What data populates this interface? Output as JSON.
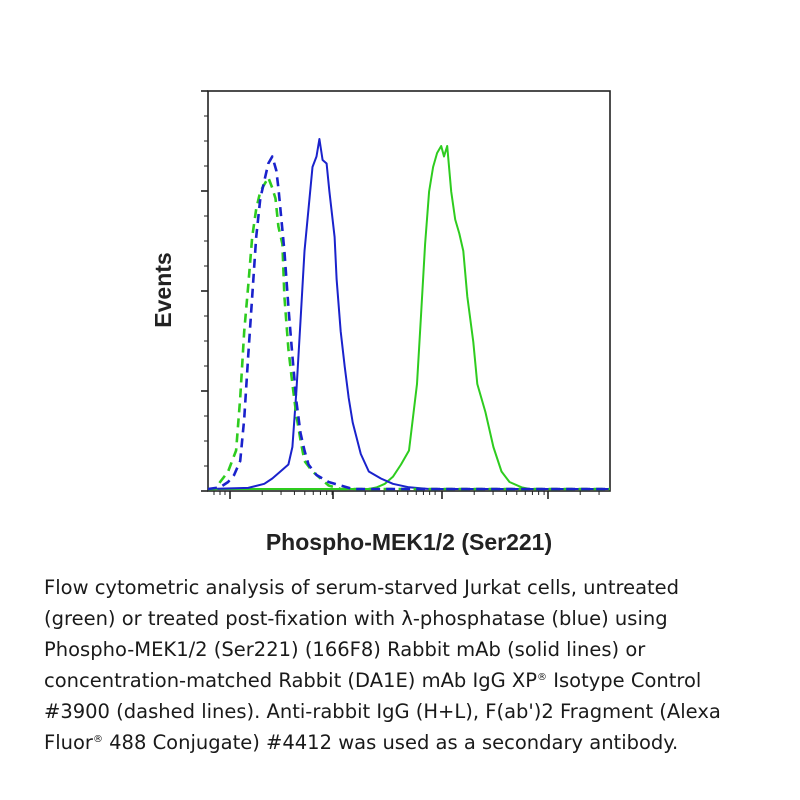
{
  "chart_data": {
    "type": "line",
    "xlabel": "Phospho-MEK1/2 (Ser221)",
    "ylabel": "Events",
    "xlim": [
      0,
      100
    ],
    "ylim": [
      0,
      100
    ],
    "x_scale": "log",
    "grid": false,
    "legend": "none",
    "series": [
      {
        "color": "#2ecc1f",
        "style": "solid",
        "points": [
          [
            0,
            0
          ],
          [
            40,
            0
          ],
          [
            42,
            0.5
          ],
          [
            44,
            1.5
          ],
          [
            46,
            3.5
          ],
          [
            48,
            7
          ],
          [
            50,
            11
          ],
          [
            52,
            30
          ],
          [
            53,
            50
          ],
          [
            54,
            70
          ],
          [
            55,
            85
          ],
          [
            56,
            92
          ],
          [
            57,
            96
          ],
          [
            58,
            98
          ],
          [
            58.7,
            95
          ],
          [
            59.5,
            98
          ],
          [
            60.5,
            85
          ],
          [
            61.5,
            77
          ],
          [
            62.5,
            73
          ],
          [
            63.5,
            68
          ],
          [
            64.5,
            55
          ],
          [
            66,
            42
          ],
          [
            67,
            30
          ],
          [
            69,
            22
          ],
          [
            71,
            12
          ],
          [
            73,
            5
          ],
          [
            75,
            2
          ],
          [
            78,
            0.5
          ],
          [
            80,
            0
          ],
          [
            100,
            0
          ]
        ]
      },
      {
        "color": "#1a22cc",
        "style": "solid",
        "points": [
          [
            0,
            0
          ],
          [
            10,
            0.3
          ],
          [
            14,
            1.5
          ],
          [
            16,
            3
          ],
          [
            18,
            5
          ],
          [
            20,
            7
          ],
          [
            21,
            12
          ],
          [
            22,
            28
          ],
          [
            23,
            48
          ],
          [
            24,
            68
          ],
          [
            25,
            80
          ],
          [
            26,
            92
          ],
          [
            27,
            95
          ],
          [
            27.7,
            100
          ],
          [
            28.5,
            94
          ],
          [
            29.5,
            93
          ],
          [
            30.2,
            85
          ],
          [
            31.5,
            72
          ],
          [
            32,
            60
          ],
          [
            33,
            45
          ],
          [
            34,
            35
          ],
          [
            35,
            26
          ],
          [
            36,
            19
          ],
          [
            38,
            10
          ],
          [
            40,
            5
          ],
          [
            43,
            3
          ],
          [
            46,
            1.5
          ],
          [
            50,
            0.5
          ],
          [
            55,
            0
          ],
          [
            100,
            0
          ]
        ]
      },
      {
        "color": "#2ecc1f",
        "style": "dashed",
        "points": [
          [
            0,
            0
          ],
          [
            2,
            0
          ],
          [
            3,
            2
          ],
          [
            5,
            5
          ],
          [
            7,
            11
          ],
          [
            8,
            26
          ],
          [
            9,
            45
          ],
          [
            10,
            58
          ],
          [
            11,
            72
          ],
          [
            12,
            80
          ],
          [
            13,
            85
          ],
          [
            14,
            87
          ],
          [
            15,
            89
          ],
          [
            16,
            86
          ],
          [
            16.8,
            83
          ],
          [
            17.5,
            75
          ],
          [
            18.5,
            70
          ],
          [
            19,
            55
          ],
          [
            20,
            40
          ],
          [
            21,
            30
          ],
          [
            22,
            21
          ],
          [
            23,
            14
          ],
          [
            24,
            8
          ],
          [
            26,
            5
          ],
          [
            28,
            3
          ],
          [
            30,
            1
          ],
          [
            33,
            0
          ],
          [
            100,
            0
          ]
        ]
      },
      {
        "color": "#1a22cc",
        "style": "dashed",
        "points": [
          [
            0,
            0
          ],
          [
            3,
            0.5
          ],
          [
            5,
            2
          ],
          [
            6.5,
            4
          ],
          [
            8,
            8
          ],
          [
            9,
            20
          ],
          [
            10,
            38
          ],
          [
            11,
            55
          ],
          [
            12,
            72
          ],
          [
            13,
            83
          ],
          [
            14,
            88
          ],
          [
            15,
            93
          ],
          [
            16,
            95
          ],
          [
            17,
            91
          ],
          [
            17.5,
            86
          ],
          [
            18,
            80
          ],
          [
            19,
            68
          ],
          [
            20,
            52
          ],
          [
            21,
            38
          ],
          [
            22,
            25
          ],
          [
            23,
            16
          ],
          [
            24,
            11
          ],
          [
            25,
            7
          ],
          [
            27,
            4
          ],
          [
            30,
            2
          ],
          [
            33,
            1
          ],
          [
            36,
            0
          ],
          [
            100,
            0
          ]
        ]
      }
    ]
  },
  "caption": {
    "line1": "Flow cytometric analysis of serum-starved Jurkat cells, untreated",
    "line2": "(green) or treated post-fixation with λ-phosphatase (blue) using",
    "line3": "Phospho-MEK1/2 (Ser221) (166F8) Rabbit mAb (solid lines) or",
    "line4a": "concentration-matched Rabbit (DA1E) mAb IgG XP",
    "reg": "®",
    "line4b": " Isotype Control",
    "line5": "#3900 (dashed lines). Anti-rabbit IgG (H+L), F(ab')2 Fragment (Alexa",
    "line6a": "Fluor",
    "line6b": " 488 Conjugate) #4412 was used as a secondary antibody."
  }
}
